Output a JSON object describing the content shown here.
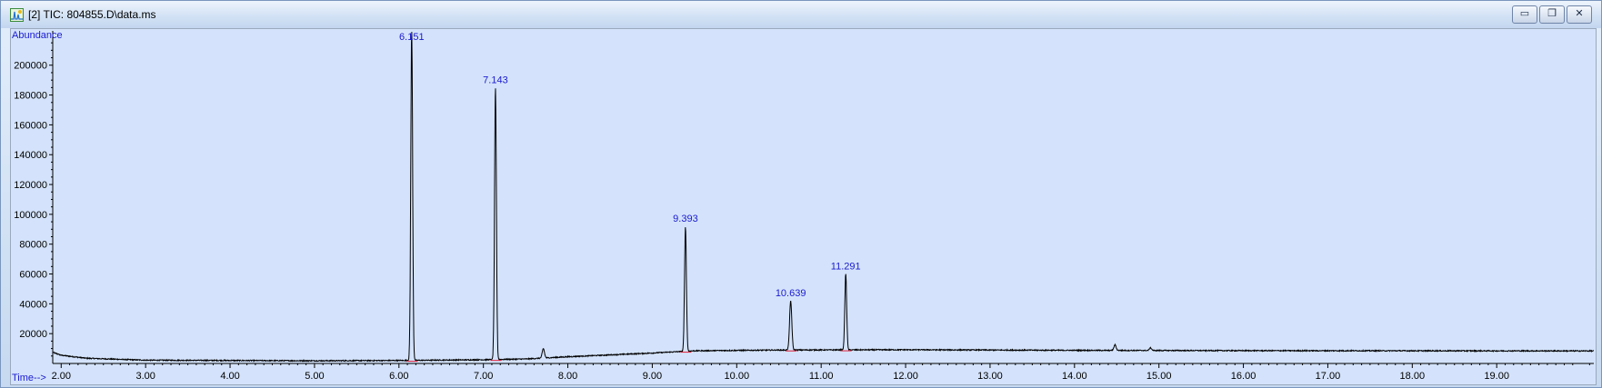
{
  "window": {
    "title": "[2] TIC: 804855.D\\data.ms",
    "icon": "chromatogram-app-icon",
    "buttons": [
      {
        "name": "minimize-button",
        "glyph": "▭"
      },
      {
        "name": "restore-button",
        "glyph": "❐"
      },
      {
        "name": "close-button",
        "glyph": "✕"
      }
    ]
  },
  "chart_data": {
    "type": "line",
    "ylabel": "Abundance",
    "xlabel": "Time-->",
    "xlim": [
      1.9,
      20.15
    ],
    "ylim": [
      0,
      223000
    ],
    "xticks": [
      2,
      3,
      4,
      5,
      6,
      7,
      8,
      9,
      10,
      11,
      12,
      13,
      14,
      15,
      16,
      17,
      18,
      19
    ],
    "xtick_labels": [
      "2.00",
      "3.00",
      "4.00",
      "5.00",
      "6.00",
      "7.00",
      "8.00",
      "9.00",
      "10.00",
      "11.00",
      "12.00",
      "13.00",
      "14.00",
      "15.00",
      "16.00",
      "17.00",
      "18.00",
      "19.00"
    ],
    "yticks": [
      20000,
      40000,
      60000,
      80000,
      100000,
      120000,
      140000,
      160000,
      180000,
      200000
    ],
    "ytick_labels": [
      "20000",
      "40000",
      "60000",
      "80000",
      "100000",
      "120000",
      "140000",
      "160000",
      "180000",
      "200000"
    ],
    "baseline": [
      [
        1.9,
        7500
      ],
      [
        2.0,
        5500
      ],
      [
        2.3,
        3500
      ],
      [
        3.0,
        2200
      ],
      [
        5.0,
        1800
      ],
      [
        6.0,
        2000
      ],
      [
        7.0,
        2500
      ],
      [
        7.5,
        3000
      ],
      [
        8.0,
        4500
      ],
      [
        9.0,
        7000
      ],
      [
        9.5,
        8500
      ],
      [
        10.5,
        9000
      ],
      [
        12.0,
        9200
      ],
      [
        14.0,
        8800
      ],
      [
        16.0,
        8600
      ],
      [
        18.0,
        8500
      ],
      [
        20.15,
        8400
      ]
    ],
    "peaks": [
      {
        "label": "6.151",
        "rt": 6.151,
        "apex": 223000,
        "labeled": true
      },
      {
        "label": "7.143",
        "rt": 7.143,
        "apex": 185000,
        "labeled": true
      },
      {
        "label": "",
        "rt": 7.71,
        "apex": 10000,
        "labeled": false
      },
      {
        "label": "9.393",
        "rt": 9.393,
        "apex": 92000,
        "labeled": true
      },
      {
        "label": "10.639",
        "rt": 10.639,
        "apex": 42000,
        "labeled": true
      },
      {
        "label": "11.291",
        "rt": 11.291,
        "apex": 60000,
        "labeled": true
      },
      {
        "label": "",
        "rt": 14.48,
        "apex": 12500,
        "labeled": false
      },
      {
        "label": "",
        "rt": 14.9,
        "apex": 10500,
        "labeled": false
      }
    ],
    "colors": {
      "plot_background": "#d4e3fb",
      "trace": "#000000",
      "peak_label": "#1a1ad0",
      "axis_label": "#1a1ad0",
      "integration_mark": "#e0203a"
    }
  }
}
